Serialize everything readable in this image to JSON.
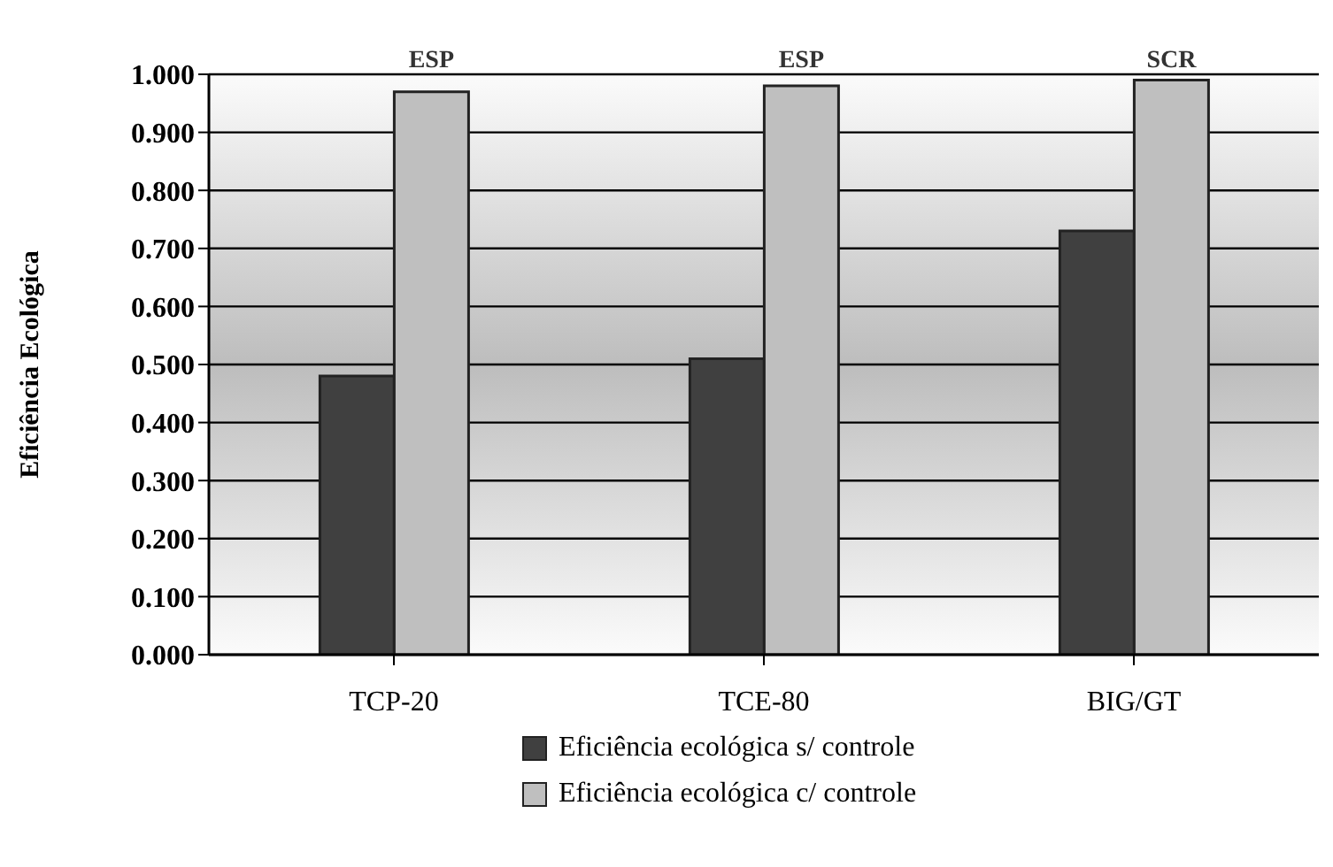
{
  "chart_data": {
    "type": "bar",
    "ylabel": "Eficiência Ecológica",
    "categories": [
      "TCP-20",
      "TCE-80",
      "BIG/GT"
    ],
    "series": [
      {
        "name": "Eficiência ecológica s/ controle",
        "color": "#404040",
        "values": [
          0.48,
          0.51,
          0.73
        ]
      },
      {
        "name": "Eficiência ecológica c/ controle",
        "color": "#bfbfbf",
        "values": [
          0.97,
          0.98,
          0.99
        ]
      }
    ],
    "ylim": [
      0,
      1
    ],
    "yticks": [
      {
        "value": 0,
        "label": "0.000"
      },
      {
        "value": 0.1,
        "label": "0.100"
      },
      {
        "value": 0.2,
        "label": "0.200"
      },
      {
        "value": 0.3,
        "label": "0.300"
      },
      {
        "value": 0.4,
        "label": "0.400"
      },
      {
        "value": 0.5,
        "label": "0.500"
      },
      {
        "value": 0.6,
        "label": "0.600"
      },
      {
        "value": 0.7,
        "label": "0.700"
      },
      {
        "value": 0.8,
        "label": "0.800"
      },
      {
        "value": 0.9,
        "label": "0.900"
      },
      {
        "value": 1,
        "label": "1.000"
      }
    ],
    "grid": "y",
    "legend": "bottom",
    "annotations": [
      {
        "text": "ESP",
        "x": "TCP-20",
        "y": 0.97
      },
      {
        "text": "ESP",
        "x": "TCE-80",
        "y": 0.98
      },
      {
        "text": "SCR",
        "x": "BIG/GT",
        "y": 0.99
      }
    ]
  }
}
